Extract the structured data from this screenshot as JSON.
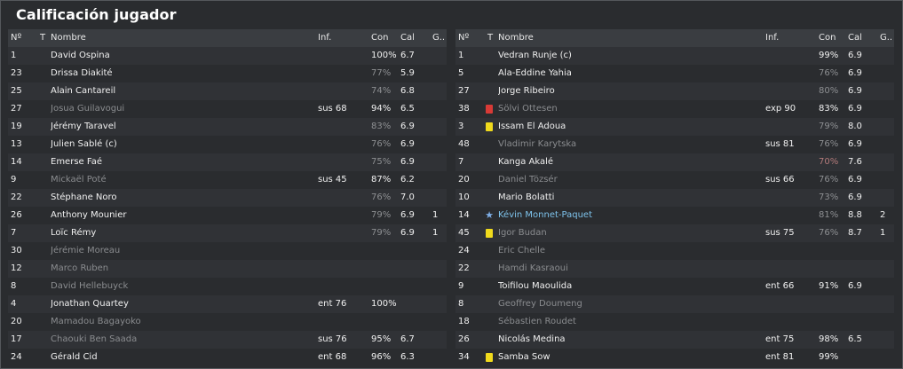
{
  "title": "Calificación jugador",
  "headers": {
    "num": "Nº",
    "t": "T",
    "name": "Nombre",
    "inf": "Inf.",
    "con": "Con",
    "cal": "Cal",
    "g": "G.."
  },
  "left": [
    {
      "num": "1",
      "name": "David Ospina",
      "inf": "",
      "con": "100%",
      "cal": "6.7",
      "g": "",
      "avail": true,
      "con_style": "bright",
      "card": "",
      "star": false
    },
    {
      "num": "23",
      "name": "Drissa Diakité",
      "inf": "",
      "con": "77%",
      "cal": "5.9",
      "g": "",
      "avail": true,
      "con_style": "low",
      "card": "",
      "star": false
    },
    {
      "num": "25",
      "name": "Alain Cantareil",
      "inf": "",
      "con": "74%",
      "cal": "6.8",
      "g": "",
      "avail": true,
      "con_style": "low",
      "card": "",
      "star": false
    },
    {
      "num": "27",
      "name": "Josua Guilavogui",
      "inf": "sus 68",
      "con": "94%",
      "cal": "6.5",
      "g": "",
      "avail": false,
      "con_style": "bright",
      "card": "",
      "star": false
    },
    {
      "num": "19",
      "name": "Jérémy Taravel",
      "inf": "",
      "con": "83%",
      "cal": "6.9",
      "g": "",
      "avail": true,
      "con_style": "low",
      "card": "",
      "star": false
    },
    {
      "num": "13",
      "name": "Julien Sablé (c)",
      "inf": "",
      "con": "76%",
      "cal": "6.9",
      "g": "",
      "avail": true,
      "con_style": "low",
      "card": "",
      "star": false
    },
    {
      "num": "14",
      "name": "Emerse Faé",
      "inf": "",
      "con": "75%",
      "cal": "6.9",
      "g": "",
      "avail": true,
      "con_style": "low",
      "card": "",
      "star": false
    },
    {
      "num": "9",
      "name": "Mickaël Poté",
      "inf": "sus 45",
      "con": "87%",
      "cal": "6.2",
      "g": "",
      "avail": false,
      "con_style": "bright",
      "card": "",
      "star": false
    },
    {
      "num": "22",
      "name": "Stéphane Noro",
      "inf": "",
      "con": "76%",
      "cal": "7.0",
      "g": "",
      "avail": true,
      "con_style": "low",
      "card": "",
      "star": false
    },
    {
      "num": "26",
      "name": "Anthony Mounier",
      "inf": "",
      "con": "79%",
      "cal": "6.9",
      "g": "1",
      "avail": true,
      "con_style": "low",
      "card": "",
      "star": false
    },
    {
      "num": "7",
      "name": "Loïc Rémy",
      "inf": "",
      "con": "79%",
      "cal": "6.9",
      "g": "1",
      "avail": true,
      "con_style": "low",
      "card": "",
      "star": false
    },
    {
      "num": "30",
      "name": "Jérémie Moreau",
      "inf": "",
      "con": "",
      "cal": "",
      "g": "",
      "avail": false,
      "con_style": "bright",
      "card": "",
      "star": false
    },
    {
      "num": "12",
      "name": "Marco Ruben",
      "inf": "",
      "con": "",
      "cal": "",
      "g": "",
      "avail": false,
      "con_style": "bright",
      "card": "",
      "star": false
    },
    {
      "num": "8",
      "name": "David Hellebuyck",
      "inf": "",
      "con": "",
      "cal": "",
      "g": "",
      "avail": false,
      "con_style": "bright",
      "card": "",
      "star": false
    },
    {
      "num": "4",
      "name": "Jonathan Quartey",
      "inf": "ent 76",
      "con": "100%",
      "cal": "",
      "g": "",
      "avail": true,
      "con_style": "bright",
      "card": "",
      "star": false
    },
    {
      "num": "20",
      "name": "Mamadou Bagayoko",
      "inf": "",
      "con": "",
      "cal": "",
      "g": "",
      "avail": false,
      "con_style": "bright",
      "card": "",
      "star": false
    },
    {
      "num": "17",
      "name": "Chaouki Ben Saada",
      "inf": "sus 76",
      "con": "95%",
      "cal": "6.7",
      "g": "",
      "avail": false,
      "con_style": "bright",
      "card": "",
      "star": false
    },
    {
      "num": "24",
      "name": "Gérald Cid",
      "inf": "ent 68",
      "con": "96%",
      "cal": "6.3",
      "g": "",
      "avail": true,
      "con_style": "bright",
      "card": "",
      "star": false
    }
  ],
  "right": [
    {
      "num": "1",
      "name": "Vedran Runje (c)",
      "inf": "",
      "con": "99%",
      "cal": "6.9",
      "g": "",
      "avail": true,
      "con_style": "bright",
      "card": "",
      "star": false
    },
    {
      "num": "5",
      "name": "Ala-Eddine Yahia",
      "inf": "",
      "con": "76%",
      "cal": "6.9",
      "g": "",
      "avail": true,
      "con_style": "low",
      "card": "",
      "star": false
    },
    {
      "num": "27",
      "name": "Jorge Ribeiro",
      "inf": "",
      "con": "80%",
      "cal": "6.9",
      "g": "",
      "avail": true,
      "con_style": "low",
      "card": "",
      "star": false
    },
    {
      "num": "38",
      "name": "Sölvi Ottesen",
      "inf": "exp 90",
      "con": "83%",
      "cal": "6.9",
      "g": "",
      "avail": false,
      "con_style": "bright",
      "card": "red",
      "star": false
    },
    {
      "num": "3",
      "name": "Issam El Adoua",
      "inf": "",
      "con": "79%",
      "cal": "8.0",
      "g": "",
      "avail": true,
      "con_style": "low",
      "card": "yellow",
      "star": false
    },
    {
      "num": "48",
      "name": "Vladimir Karytska",
      "inf": "sus 81",
      "con": "76%",
      "cal": "6.9",
      "g": "",
      "avail": false,
      "con_style": "low",
      "card": "",
      "star": false
    },
    {
      "num": "7",
      "name": "Kanga Akalé",
      "inf": "",
      "con": "70%",
      "cal": "7.6",
      "g": "",
      "avail": true,
      "con_style": "red",
      "card": "",
      "star": false
    },
    {
      "num": "20",
      "name": "Daniel Tözsér",
      "inf": "sus 66",
      "con": "76%",
      "cal": "6.9",
      "g": "",
      "avail": false,
      "con_style": "low",
      "card": "",
      "star": false
    },
    {
      "num": "10",
      "name": "Mario Bolatti",
      "inf": "",
      "con": "73%",
      "cal": "6.9",
      "g": "",
      "avail": true,
      "con_style": "low",
      "card": "",
      "star": false
    },
    {
      "num": "14",
      "name": "Kévin Monnet-Paquet",
      "inf": "",
      "con": "81%",
      "cal": "8.8",
      "g": "2",
      "avail": true,
      "con_style": "low",
      "card": "",
      "star": true
    },
    {
      "num": "45",
      "name": "Igor Budan",
      "inf": "sus 75",
      "con": "76%",
      "cal": "8.7",
      "g": "1",
      "avail": false,
      "con_style": "low",
      "card": "yellow",
      "star": false
    },
    {
      "num": "24",
      "name": "Eric Chelle",
      "inf": "",
      "con": "",
      "cal": "",
      "g": "",
      "avail": false,
      "con_style": "bright",
      "card": "",
      "star": false
    },
    {
      "num": "22",
      "name": "Hamdi Kasraoui",
      "inf": "",
      "con": "",
      "cal": "",
      "g": "",
      "avail": false,
      "con_style": "bright",
      "card": "",
      "star": false
    },
    {
      "num": "9",
      "name": "Toifilou Maoulida",
      "inf": "ent 66",
      "con": "91%",
      "cal": "6.9",
      "g": "",
      "avail": true,
      "con_style": "bright",
      "card": "",
      "star": false
    },
    {
      "num": "8",
      "name": "Geoffrey Doumeng",
      "inf": "",
      "con": "",
      "cal": "",
      "g": "",
      "avail": false,
      "con_style": "bright",
      "card": "",
      "star": false
    },
    {
      "num": "18",
      "name": "Sébastien Roudet",
      "inf": "",
      "con": "",
      "cal": "",
      "g": "",
      "avail": false,
      "con_style": "bright",
      "card": "",
      "star": false
    },
    {
      "num": "26",
      "name": "Nicolás Medina",
      "inf": "ent 75",
      "con": "98%",
      "cal": "6.5",
      "g": "",
      "avail": true,
      "con_style": "bright",
      "card": "",
      "star": false
    },
    {
      "num": "34",
      "name": "Samba Sow",
      "inf": "ent 81",
      "con": "99%",
      "cal": "",
      "g": "",
      "avail": true,
      "con_style": "bright",
      "card": "yellow",
      "star": false
    }
  ],
  "colors": {
    "available": "#f0f0f0",
    "unavailable": "#8a8c8f",
    "highlight": "#7ec3ec",
    "yellow_card": "#f0da1c",
    "red_card": "#d83a36"
  }
}
